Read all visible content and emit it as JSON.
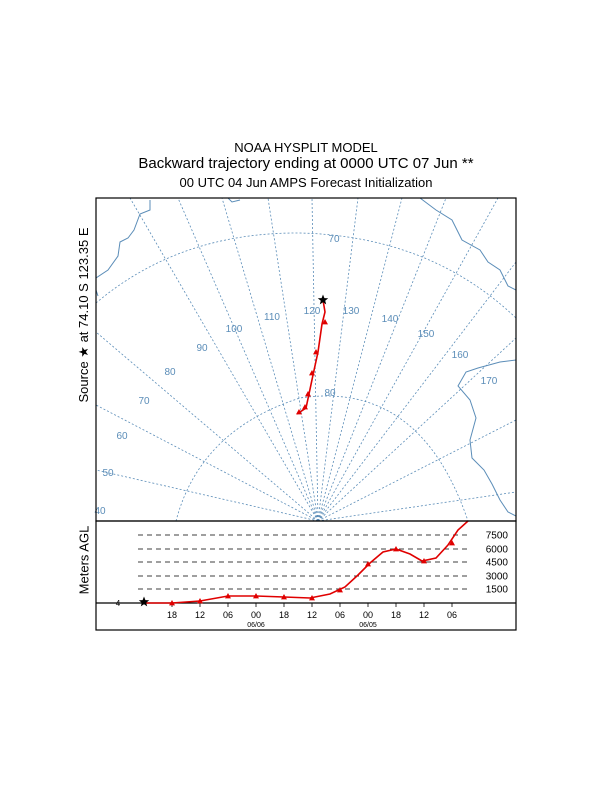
{
  "title": {
    "line1": "NOAA HYSPLIT MODEL",
    "line2": "Backward trajectory ending at 0000 UTC 07 Jun **",
    "line3": "00 UTC 04 Jun    AMPS  Forecast Initialization"
  },
  "source_label": "Source ★ at  74.10 S  123.35 E",
  "height_axis_label": "Meters AGL",
  "map": {
    "latitude_labels": [
      "70",
      "80"
    ],
    "longitude_labels": [
      "40",
      "50",
      "60",
      "70",
      "80",
      "90",
      "100",
      "110",
      "120",
      "130",
      "140",
      "150",
      "160",
      "170"
    ]
  },
  "height_panel": {
    "height_labels": [
      "7500",
      "6000",
      "4500",
      "3000",
      "1500"
    ],
    "time_labels": [
      "18",
      "12",
      "06",
      "00",
      "18",
      "12",
      "06",
      "00",
      "18",
      "12",
      "06"
    ],
    "date_labels": [
      "06/06",
      "06/05"
    ],
    "left_tick_label": "4"
  },
  "colors": {
    "trajectory": "#e00000",
    "map_lines": "#5b8db8",
    "source_marker": "#000000"
  },
  "icons": {
    "source_marker": "star-icon",
    "trajectory_marker": "triangle-icon"
  }
}
